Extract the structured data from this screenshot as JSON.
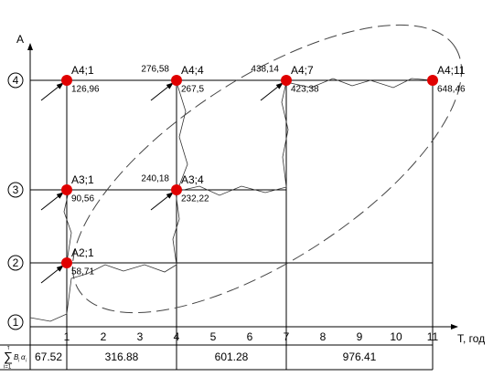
{
  "axes": {
    "y_label": "A",
    "x_label": "T, год"
  },
  "x_ticks": [
    "1",
    "2",
    "3",
    "4",
    "5",
    "6",
    "7",
    "8",
    "9",
    "10",
    "11"
  ],
  "levels": [
    "1",
    "2",
    "3",
    "4"
  ],
  "nodes": [
    {
      "label": "A2;1",
      "value": "58,71"
    },
    {
      "label": "A3;1",
      "value": "90,56"
    },
    {
      "label": "A4;1",
      "value": "126,96"
    },
    {
      "label": "A3;4",
      "value": "232,22",
      "left_value": "240,18"
    },
    {
      "label": "A4;4",
      "value": "267,5",
      "left_value": "276,58"
    },
    {
      "label": "A4;7",
      "value": "423,38",
      "left_value": "438,14"
    },
    {
      "label": "A4;11",
      "value": "648,46"
    }
  ],
  "table": {
    "formula": {
      "sum": "∑",
      "upper": "τ",
      "lower": "i=1",
      "term1": "B",
      "sub1": "i",
      "term2": "α",
      "sub2": "i"
    },
    "cells": [
      "67.52",
      "316.88",
      "601.28",
      "976.41"
    ]
  }
}
